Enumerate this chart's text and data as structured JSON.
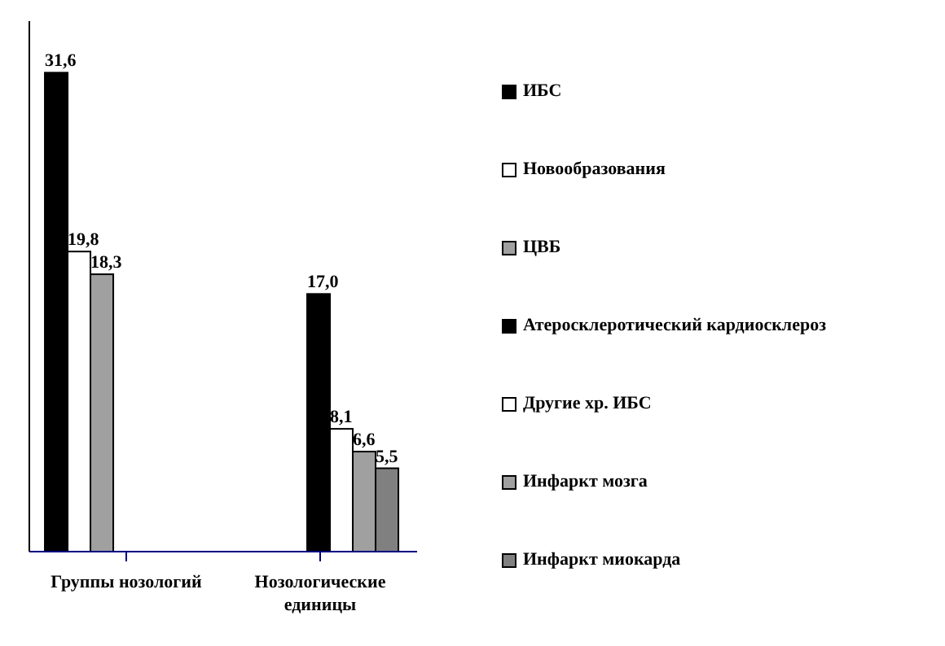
{
  "chart_data": {
    "type": "bar",
    "categories": [
      "Группы нозологий",
      "Нозологические единицы"
    ],
    "series": [
      {
        "name": "ИБС",
        "color": "#000000",
        "values": [
          31.6,
          null
        ],
        "value_labels": [
          "31,6",
          null
        ]
      },
      {
        "name": "Новообразования",
        "color": "#ffffff",
        "values": [
          19.8,
          null
        ],
        "value_labels": [
          "19,8",
          null
        ]
      },
      {
        "name": "ЦВБ",
        "color": "#a0a0a0",
        "values": [
          18.3,
          null
        ],
        "value_labels": [
          "18,3",
          null
        ]
      },
      {
        "name": "Атеросклеротический кардиосклероз",
        "color": "#000000",
        "values": [
          null,
          17.0
        ],
        "value_labels": [
          null,
          "17,0"
        ]
      },
      {
        "name": "Другие хр. ИБС",
        "color": "#ffffff",
        "values": [
          null,
          8.1
        ],
        "value_labels": [
          null,
          "8,1"
        ]
      },
      {
        "name": "Инфаркт мозга",
        "color": "#a0a0a0",
        "values": [
          null,
          6.6
        ],
        "value_labels": [
          null,
          "6,6"
        ]
      },
      {
        "name": "Инфаркт миокарда",
        "color": "#808080",
        "values": [
          null,
          5.5
        ],
        "value_labels": [
          null,
          "5,5"
        ]
      }
    ],
    "ylim": [
      0,
      35
    ],
    "tick_labels": "x",
    "legend": "right"
  }
}
